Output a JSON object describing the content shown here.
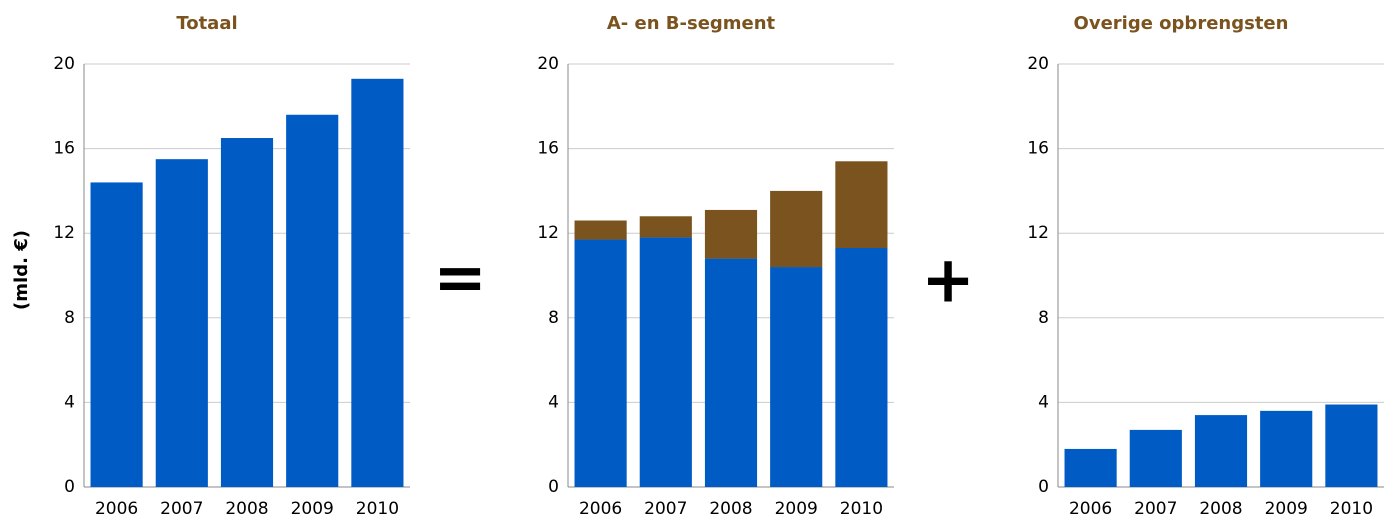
{
  "chart_data": [
    {
      "type": "bar",
      "title": "Totaal",
      "ylabel": "(mld. €)",
      "categories": [
        "2006",
        "2007",
        "2008",
        "2009",
        "2010"
      ],
      "values": [
        14.4,
        15.5,
        16.5,
        17.6,
        19.3
      ],
      "color": "#005bc4",
      "ylim": [
        0,
        20
      ],
      "yticks": [
        0,
        4,
        8,
        12,
        16,
        20
      ],
      "grid": true
    },
    {
      "type": "stacked_bar",
      "title": "A- en B-segment",
      "categories": [
        "2006",
        "2007",
        "2008",
        "2009",
        "2010"
      ],
      "series": [
        {
          "color": "#005bc4",
          "values": [
            11.7,
            11.8,
            10.8,
            10.4,
            11.3
          ]
        },
        {
          "color": "#7b531e",
          "values": [
            0.9,
            1.0,
            2.3,
            3.6,
            4.1
          ]
        }
      ],
      "ylim": [
        0,
        20
      ],
      "yticks": [
        0,
        4,
        8,
        12,
        16,
        20
      ],
      "grid": true
    },
    {
      "type": "bar",
      "title": "Overige opbrengsten",
      "categories": [
        "2006",
        "2007",
        "2008",
        "2009",
        "2010"
      ],
      "values": [
        1.8,
        2.7,
        3.4,
        3.6,
        3.9
      ],
      "color": "#005bc4",
      "ylim": [
        0,
        20
      ],
      "yticks": [
        0,
        4,
        8,
        12,
        16,
        20
      ],
      "grid": true
    }
  ],
  "symbols": [
    "=",
    "+"
  ]
}
